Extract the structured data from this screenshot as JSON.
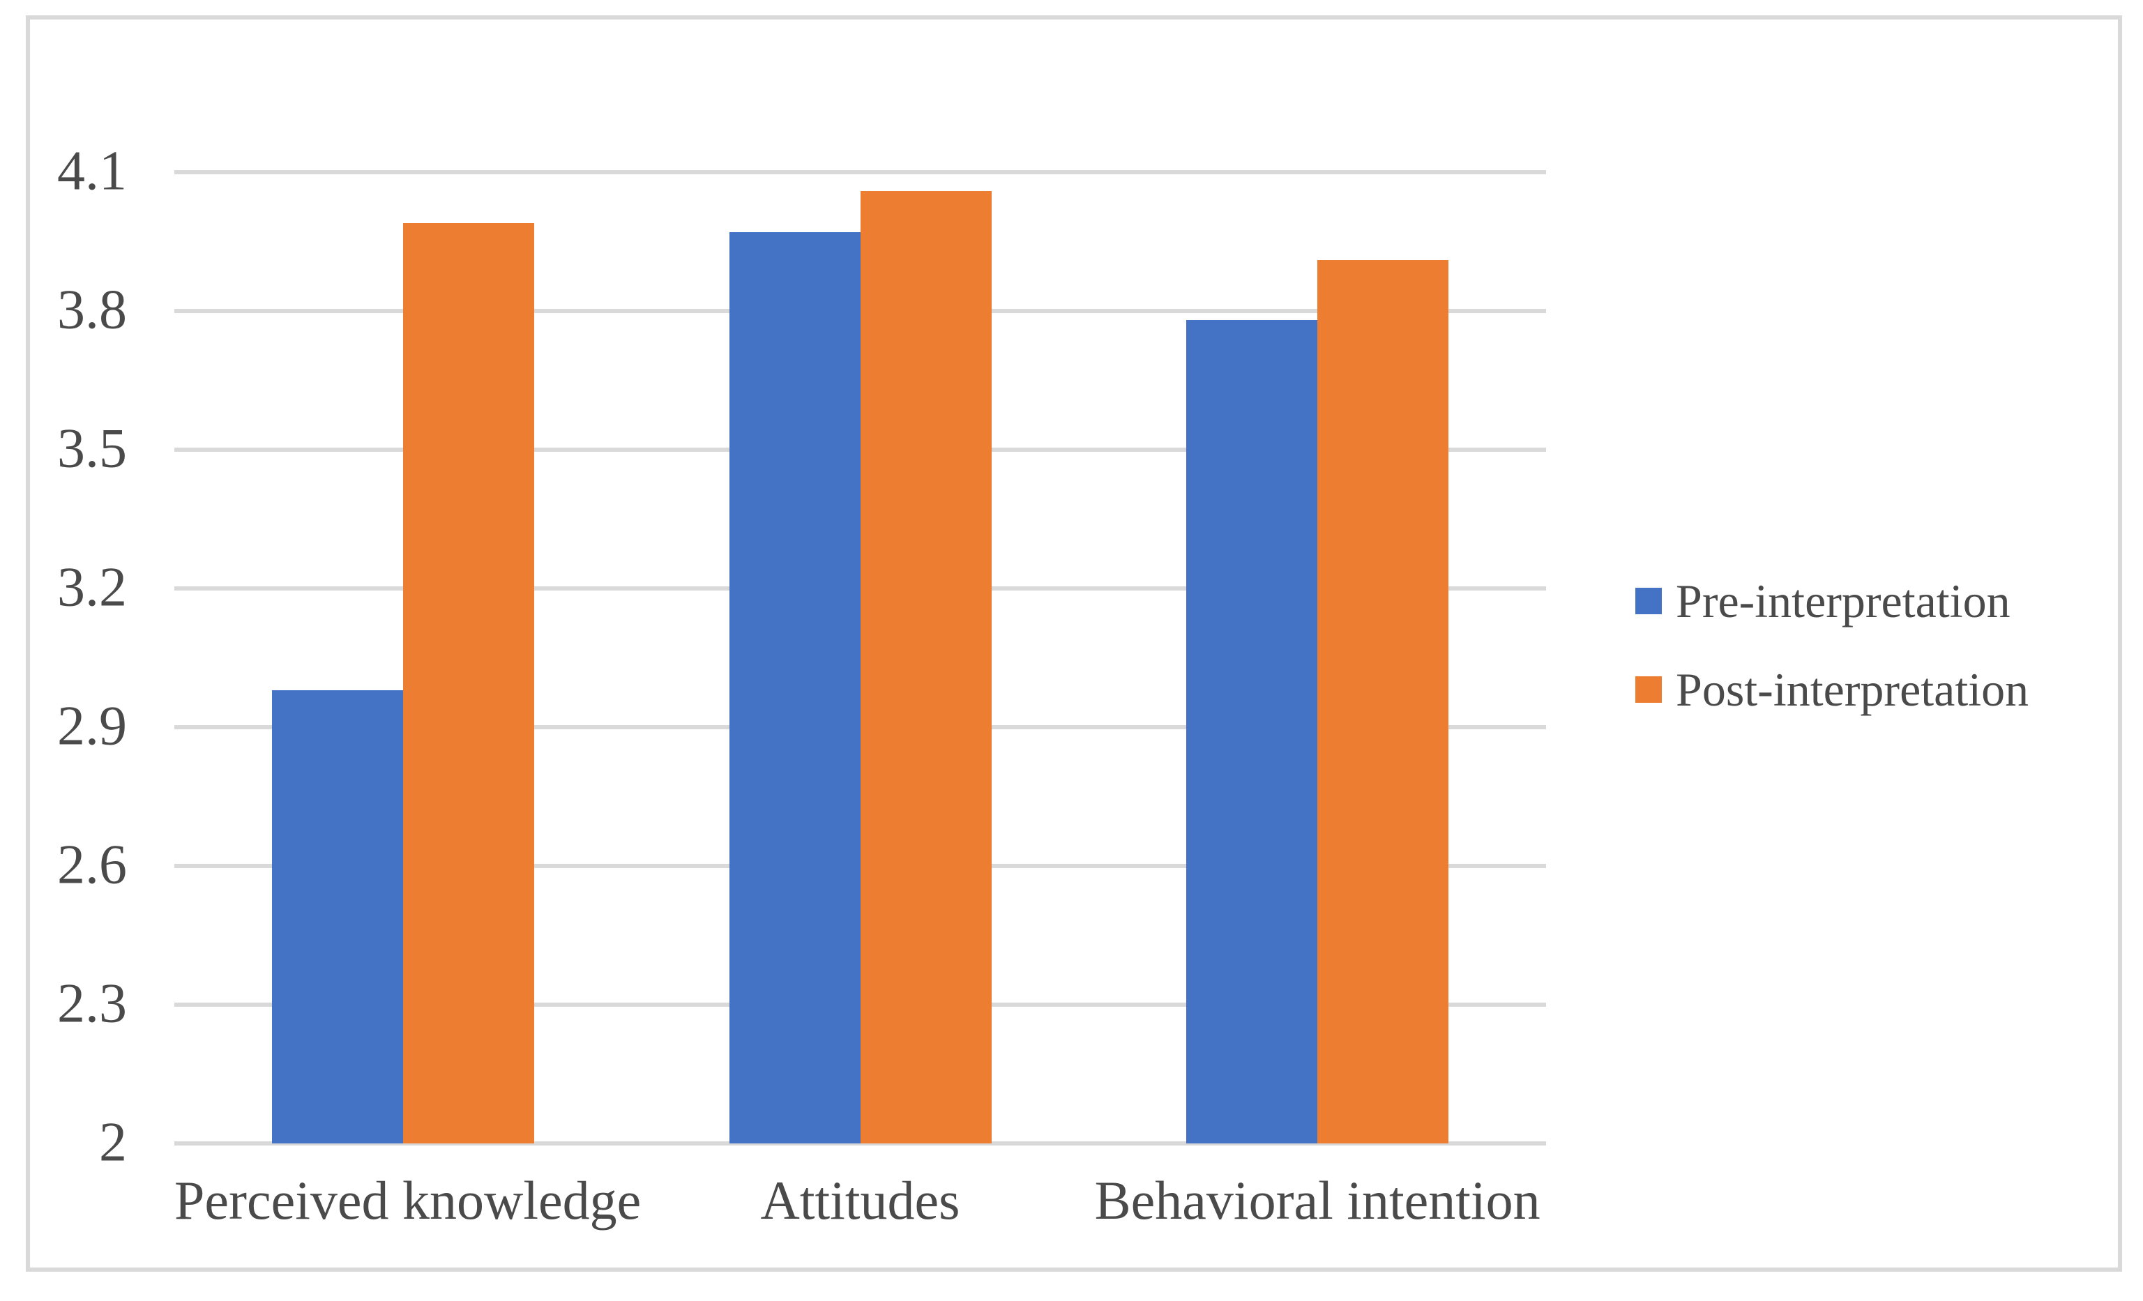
{
  "chart_data": {
    "type": "bar",
    "title": "",
    "xlabel": "",
    "ylabel": "",
    "categories": [
      "Perceived knowledge",
      "Attitudes",
      "Behavioral intention"
    ],
    "series": [
      {
        "name": "Pre-interpretation",
        "color": "#4472C4",
        "values": [
          2.98,
          3.97,
          3.78
        ]
      },
      {
        "name": "Post-interpretation",
        "color": "#ED7D31",
        "values": [
          3.99,
          4.06,
          3.91
        ]
      }
    ],
    "ylim": [
      2,
      4.1
    ],
    "yticks": [
      2,
      2.3,
      2.6,
      2.9,
      3.2,
      3.5,
      3.8,
      4.1
    ],
    "grid": true,
    "legend_position": "right",
    "colors": {
      "gridline": "#D9D9D9",
      "border": "#D9D9D9",
      "text": "#4a4a4a",
      "background": "#FFFFFF"
    }
  }
}
